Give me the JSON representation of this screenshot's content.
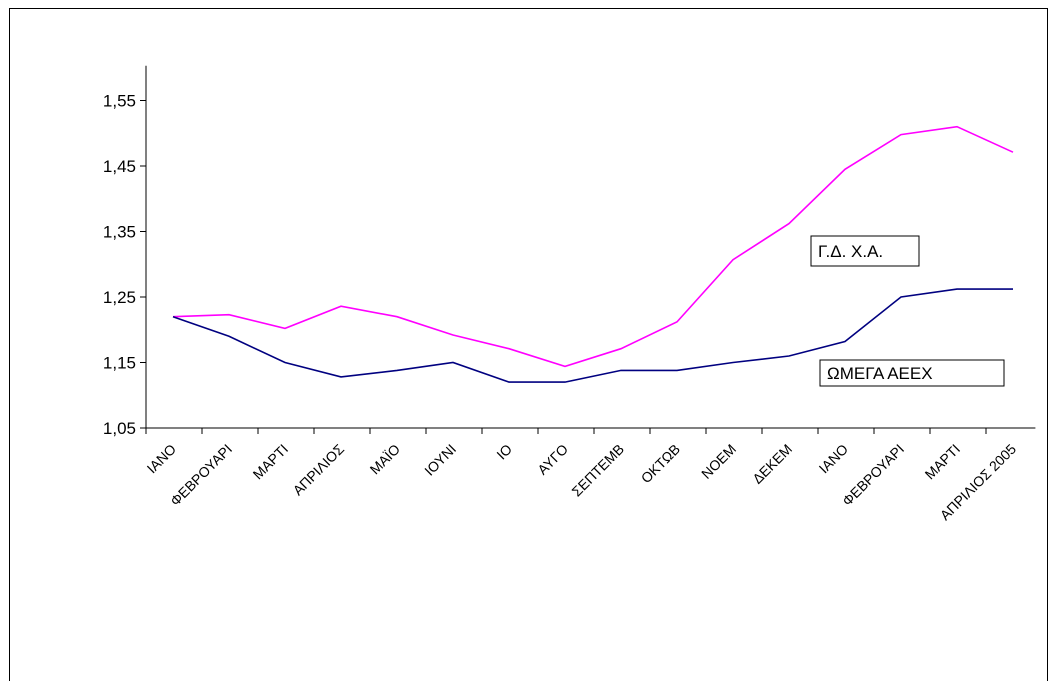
{
  "chart_data": {
    "type": "line",
    "categories": [
      "ΙΑΝΟ",
      "ΦΕΒΡΟΥΑΡΙ",
      "ΜΑΡΤΙ",
      "ΑΠΡΙΛΙΟΣ",
      "ΜΑΪΟ",
      "ΙΟΥΝΙ",
      "ΙΟ",
      "ΑΥΓΟ",
      "ΣΕΠΤΕΜΒ",
      "ΟΚΤΩΒ",
      "ΝΟΕΜ",
      "ΔΕΚΕΜ",
      "ΙΑΝΟ",
      "ΦΕΒΡΟΥΑΡΙ",
      "ΜΑΡΤΙ",
      "ΑΠΡΙΛΙΟΣ 2005"
    ],
    "series": [
      {
        "name": "Γ.Δ. Χ.Α.",
        "color": "#ff00ff",
        "values": [
          1.22,
          1.223,
          1.202,
          1.236,
          1.22,
          1.192,
          1.171,
          1.144,
          1.171,
          1.212,
          1.307,
          1.362,
          1.445,
          1.498,
          1.51,
          1.471
        ]
      },
      {
        "name": "ΩΜΕΓΑ ΑΕΕΧ",
        "color": "#000080",
        "values": [
          1.22,
          1.19,
          1.15,
          1.128,
          1.138,
          1.15,
          1.12,
          1.12,
          1.138,
          1.138,
          1.15,
          1.16,
          1.182,
          1.25,
          1.262,
          1.262
        ]
      }
    ],
    "yticks": [
      "1,05",
      "1,15",
      "1,25",
      "1,35",
      "1,45",
      "1,55"
    ],
    "ylim": [
      1.05,
      1.6
    ],
    "grid": false,
    "legend": "inline-labels"
  }
}
